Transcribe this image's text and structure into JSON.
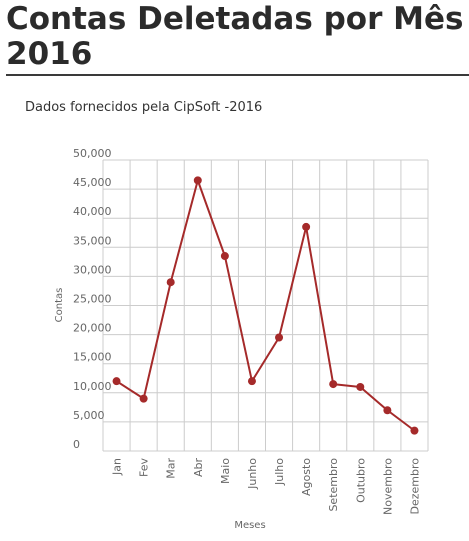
{
  "header": {
    "title": "Contas Deletadas por Mês 2016",
    "subtitle": "Dados fornecidos pela CipSoft -2016"
  },
  "chart_data": {
    "type": "line",
    "title": "Contas Deletadas por Mês 2016",
    "subtitle": "Dados fornecidos pela CipSoft -2016",
    "xlabel": "Meses",
    "ylabel": "Contas",
    "categories": [
      "Jan",
      "Fev",
      "Mar",
      "Abr",
      "Maio",
      "Junho",
      "Julho",
      "Agosto",
      "Setembro",
      "Outubro",
      "Novembro",
      "Dezembro"
    ],
    "series": [
      {
        "values": [
          12000,
          9000,
          29000,
          46500,
          33500,
          12000,
          19500,
          38500,
          11500,
          11000,
          7000,
          3500
        ],
        "color": "#a52a2a"
      }
    ],
    "ylim": [
      0,
      50000
    ],
    "yticks": [
      0,
      5000,
      10000,
      15000,
      20000,
      25000,
      30000,
      35000,
      40000,
      45000,
      50000
    ],
    "ytick_labels": [
      "0",
      "5,000",
      "10,000",
      "15,000",
      "20,000",
      "25,000",
      "30,000",
      "35,000",
      "40,000",
      "45,000",
      "50,000"
    ],
    "grid": true,
    "grid_color": "#cccccc",
    "legend": "none"
  }
}
